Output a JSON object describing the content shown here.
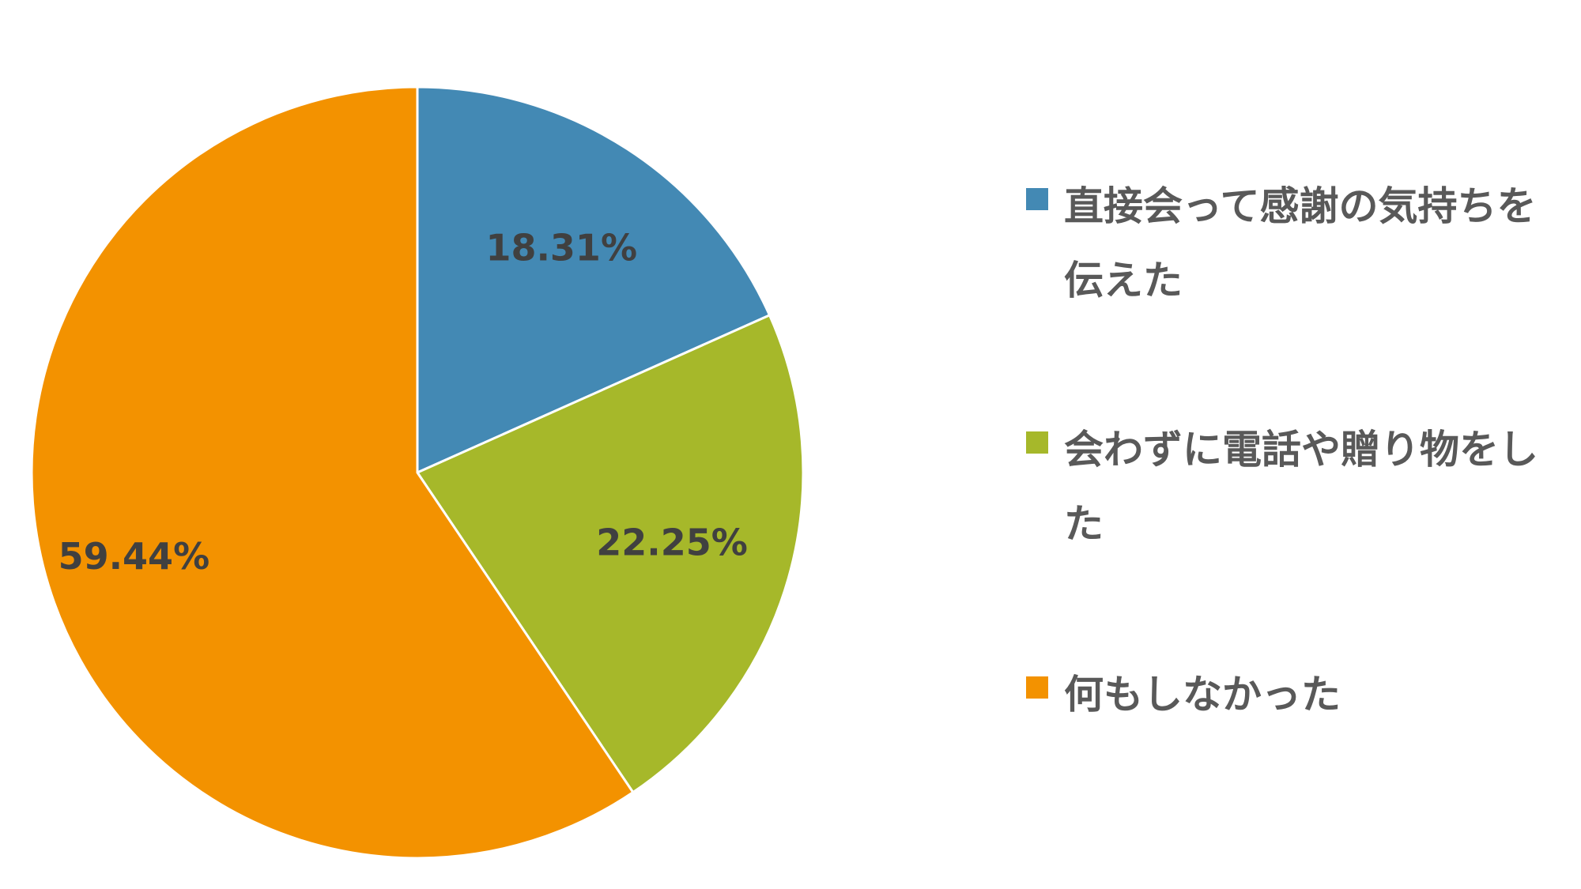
{
  "chart_data": {
    "type": "pie",
    "categories": [
      "直接会って感謝の気持ちを伝えた",
      "会わずに電話や贈り物をした",
      "何もしなかった"
    ],
    "values": [
      18.31,
      22.25,
      59.44
    ],
    "labels": [
      "18.31%",
      "22.25%",
      "59.44%"
    ],
    "colors": [
      "#4389B4",
      "#A6B82A",
      "#F39200"
    ],
    "legend_position": "right"
  }
}
